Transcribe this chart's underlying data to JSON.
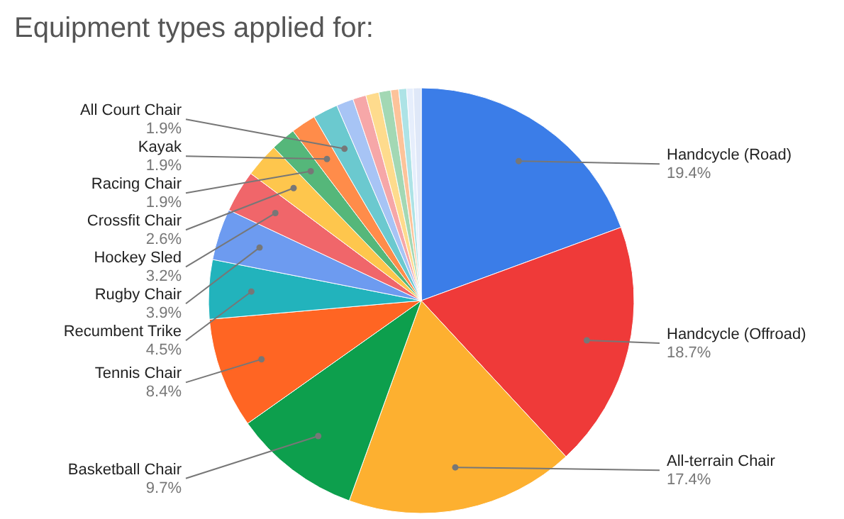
{
  "chart_data": {
    "type": "pie",
    "title": "Equipment types applied for:",
    "categories": [
      "Handcycle (Road)",
      "Handcycle (Offroad)",
      "All-terrain Chair",
      "Basketball Chair",
      "Tennis Chair",
      "Recumbent Trike",
      "Rugby Chair",
      "Hockey Sled",
      "Crossfit Chair",
      "Racing Chair",
      "Kayak",
      "All Court Chair",
      null,
      null,
      null,
      null,
      null,
      null,
      null,
      null
    ],
    "values": [
      19.4,
      18.7,
      17.4,
      9.7,
      8.4,
      4.5,
      3.9,
      3.2,
      2.6,
      1.9,
      1.9,
      1.9,
      1.3,
      1.0,
      1.0,
      0.9,
      0.6,
      0.6,
      0.5,
      0.6
    ],
    "value_labels": [
      "19.4%",
      "18.7%",
      "17.4%",
      "9.7%",
      "8.4%",
      "4.5%",
      "3.9%",
      "3.2%",
      "2.6%",
      "1.9%",
      "1.9%",
      "1.9%",
      null,
      null,
      null,
      null,
      null,
      null,
      null,
      null
    ],
    "colors": [
      "#3b7de8",
      "#ef3a39",
      "#fdb030",
      "#0d9f4d",
      "#ff6523",
      "#22b3bc",
      "#6d9bf0",
      "#f0666a",
      "#fec64d",
      "#55b77a",
      "#ff8c4a",
      "#6bc9cf",
      "#a7c4f5",
      "#f6a7a8",
      "#fedb8d",
      "#a3d8b4",
      "#fdc39a",
      "#ade3e6",
      "#e6eefc",
      "#dfe8f8"
    ]
  }
}
